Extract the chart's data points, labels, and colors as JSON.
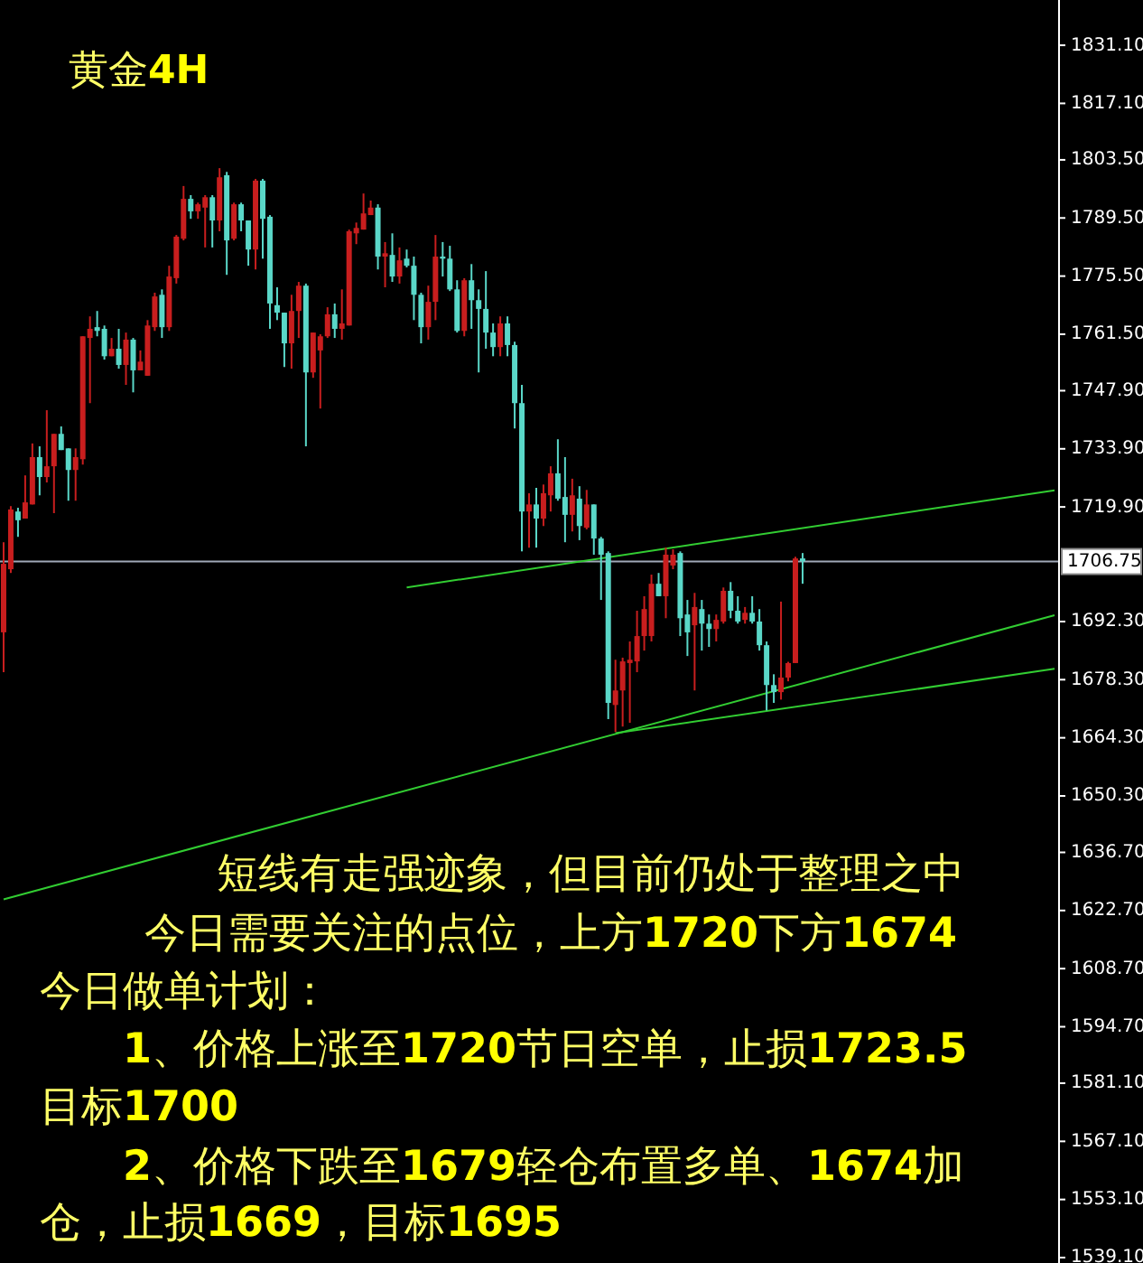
{
  "chart_data": {
    "type": "candlestick",
    "title": "黄金4H",
    "categories": [
      null,
      null,
      null,
      null,
      null,
      null,
      null,
      null,
      null,
      null,
      null,
      null,
      null,
      null,
      null,
      null,
      null,
      null,
      null,
      null,
      null,
      null,
      null,
      null,
      null,
      null,
      null,
      null,
      null,
      null,
      null,
      null,
      null,
      null,
      null,
      null,
      null,
      null,
      null,
      null,
      null,
      null,
      null,
      null,
      null,
      null,
      null,
      null,
      null,
      null,
      null,
      null,
      null,
      null,
      null,
      null,
      null,
      null,
      null,
      null,
      null,
      null,
      null,
      null,
      null,
      null,
      null,
      null,
      null,
      null,
      null,
      null,
      null,
      null,
      null,
      null,
      null,
      null,
      null,
      null,
      null,
      null,
      null,
      null,
      null,
      null,
      null,
      null,
      null,
      null,
      null,
      null,
      null,
      null,
      null,
      null,
      null,
      null,
      null,
      null,
      null,
      null,
      null,
      null,
      null,
      null,
      null,
      null,
      null,
      null,
      null,
      null,
      null,
      null,
      null,
      null,
      null,
      null,
      null,
      null,
      null,
      null,
      null,
      null,
      null,
      null,
      null,
      null,
      null,
      null,
      null,
      null,
      null,
      null,
      null,
      null,
      null,
      null,
      null,
      null,
      null,
      null,
      null,
      null,
      null,
      null,
      null
    ],
    "ohlc": [
      [
        1689.7,
        1711.4,
        1680.1,
        1706.2
      ],
      [
        1704.9,
        1720.1,
        1704.0,
        1719.3
      ],
      [
        1718.8,
        1719.7,
        1712.7,
        1716.7
      ],
      [
        1717.1,
        1727.5,
        1717.1,
        1721.0
      ],
      [
        1720.5,
        1735.2,
        1720.5,
        1731.9
      ],
      [
        1731.9,
        1734.5,
        1722.7,
        1727.1
      ],
      [
        1727.1,
        1743.2,
        1725.8,
        1729.7
      ],
      [
        1729.7,
        1737.5,
        1718.4,
        1737.5
      ],
      [
        1737.5,
        1739.3,
        1733.6,
        1733.6
      ],
      [
        1734.0,
        1734.0,
        1721.4,
        1728.8
      ],
      [
        1728.8,
        1734.0,
        1721.4,
        1731.9
      ],
      [
        1731.4,
        1761.0,
        1730.1,
        1761.0
      ],
      [
        1760.6,
        1765.8,
        1744.9,
        1762.8
      ],
      [
        1763.2,
        1767.1,
        1761.0,
        1762.3
      ],
      [
        1762.8,
        1763.6,
        1755.4,
        1756.2
      ],
      [
        1756.2,
        1760.6,
        1756.2,
        1758.0
      ],
      [
        1758.0,
        1762.8,
        1753.2,
        1754.1
      ],
      [
        1754.1,
        1761.9,
        1749.3,
        1760.2
      ],
      [
        1760.2,
        1760.6,
        1747.5,
        1752.8
      ],
      [
        1752.8,
        1757.6,
        1752.8,
        1754.9
      ],
      [
        1751.5,
        1764.9,
        1751.5,
        1763.6
      ],
      [
        1763.2,
        1771.5,
        1762.3,
        1770.6
      ],
      [
        1771.0,
        1772.3,
        1760.6,
        1763.2
      ],
      [
        1763.2,
        1778.0,
        1762.3,
        1775.4
      ],
      [
        1775.0,
        1785.4,
        1773.7,
        1785.0
      ],
      [
        1784.5,
        1797.2,
        1784.1,
        1794.1
      ],
      [
        1794.1,
        1795.0,
        1789.3,
        1791.1
      ],
      [
        1791.1,
        1793.2,
        1789.3,
        1792.8
      ],
      [
        1792.0,
        1795.0,
        1782.4,
        1794.5
      ],
      [
        1794.5,
        1795.0,
        1782.4,
        1788.9
      ],
      [
        1788.9,
        1801.5,
        1786.3,
        1799.3
      ],
      [
        1799.8,
        1800.6,
        1775.8,
        1784.1
      ],
      [
        1784.5,
        1793.2,
        1784.1,
        1792.8
      ],
      [
        1792.8,
        1793.2,
        1786.3,
        1788.9
      ],
      [
        1788.9,
        1788.9,
        1778.0,
        1781.9
      ],
      [
        1781.9,
        1798.9,
        1777.1,
        1798.5
      ],
      [
        1798.5,
        1798.9,
        1779.7,
        1789.3
      ],
      [
        1789.8,
        1790.2,
        1762.8,
        1768.9
      ],
      [
        1768.5,
        1772.8,
        1764.9,
        1766.7
      ],
      [
        1766.7,
        1766.7,
        1753.6,
        1759.3
      ],
      [
        1759.3,
        1771.0,
        1753.2,
        1767.1
      ],
      [
        1767.1,
        1774.1,
        1760.6,
        1773.2
      ],
      [
        1773.2,
        1773.7,
        1734.5,
        1752.3
      ],
      [
        1752.3,
        1761.9,
        1751.0,
        1761.9
      ],
      [
        1757.6,
        1761.5,
        1743.6,
        1761.0
      ],
      [
        1761.0,
        1768.0,
        1760.6,
        1766.3
      ],
      [
        1766.3,
        1768.9,
        1760.6,
        1762.8
      ],
      [
        1762.8,
        1772.3,
        1760.2,
        1764.1
      ],
      [
        1763.6,
        1786.7,
        1763.6,
        1786.3
      ],
      [
        1785.8,
        1788.4,
        1783.2,
        1787.1
      ],
      [
        1786.7,
        1795.4,
        1786.7,
        1790.6
      ],
      [
        1790.2,
        1793.7,
        1790.2,
        1792.0
      ],
      [
        1792.0,
        1792.8,
        1777.1,
        1780.2
      ],
      [
        1780.2,
        1783.7,
        1772.8,
        1781.0
      ],
      [
        1780.6,
        1785.8,
        1774.1,
        1775.4
      ],
      [
        1775.4,
        1782.4,
        1773.7,
        1779.3
      ],
      [
        1779.7,
        1781.9,
        1777.6,
        1778.0
      ],
      [
        1778.0,
        1780.2,
        1764.9,
        1771.0
      ],
      [
        1771.0,
        1771.5,
        1759.3,
        1763.2
      ],
      [
        1763.2,
        1773.2,
        1760.2,
        1769.3
      ],
      [
        1769.3,
        1785.4,
        1764.9,
        1780.2
      ],
      [
        1780.2,
        1783.7,
        1775.4,
        1779.7
      ],
      [
        1779.7,
        1782.8,
        1771.9,
        1772.3
      ],
      [
        1772.3,
        1774.5,
        1761.9,
        1762.3
      ],
      [
        1762.3,
        1775.0,
        1761.0,
        1774.5
      ],
      [
        1774.5,
        1778.4,
        1762.8,
        1769.7
      ],
      [
        1769.7,
        1772.3,
        1752.3,
        1767.6
      ],
      [
        1767.6,
        1776.7,
        1758.0,
        1761.9
      ],
      [
        1761.9,
        1764.1,
        1756.2,
        1758.4
      ],
      [
        1758.4,
        1765.8,
        1756.2,
        1764.1
      ],
      [
        1764.1,
        1765.8,
        1756.2,
        1758.9
      ],
      [
        1758.9,
        1759.7,
        1738.8,
        1744.9
      ],
      [
        1744.9,
        1749.3,
        1709.2,
        1718.8
      ],
      [
        1718.8,
        1723.2,
        1710.1,
        1720.5
      ],
      [
        1720.5,
        1724.5,
        1710.1,
        1717.1
      ],
      [
        1717.1,
        1725.3,
        1715.3,
        1723.2
      ],
      [
        1722.7,
        1729.7,
        1718.8,
        1728.0
      ],
      [
        1728.0,
        1736.2,
        1721.4,
        1721.9
      ],
      [
        1722.3,
        1731.9,
        1711.4,
        1718.0
      ],
      [
        1718.0,
        1726.7,
        1714.0,
        1722.7
      ],
      [
        1721.9,
        1724.9,
        1711.9,
        1715.3
      ],
      [
        1714.9,
        1724.0,
        1714.5,
        1720.5
      ],
      [
        1720.5,
        1720.5,
        1708.4,
        1712.3
      ],
      [
        1712.3,
        1712.7,
        1697.5,
        1708.4
      ],
      [
        1708.8,
        1709.2,
        1668.8,
        1672.7
      ],
      [
        1672.2,
        1683.1,
        1665.7,
        1675.7
      ],
      [
        1675.7,
        1683.6,
        1667.0,
        1682.7
      ],
      [
        1682.3,
        1687.5,
        1667.9,
        1683.1
      ],
      [
        1682.7,
        1694.9,
        1680.1,
        1688.8
      ],
      [
        1688.8,
        1698.4,
        1685.3,
        1695.3
      ],
      [
        1688.8,
        1703.6,
        1687.5,
        1701.4
      ],
      [
        1701.4,
        1704.0,
        1698.4,
        1698.4
      ],
      [
        1698.4,
        1710.1,
        1693.1,
        1708.4
      ],
      [
        1705.8,
        1709.7,
        1704.9,
        1708.4
      ],
      [
        1708.8,
        1709.2,
        1688.8,
        1693.1
      ],
      [
        1694.0,
        1697.5,
        1684.0,
        1689.7
      ],
      [
        1691.4,
        1699.2,
        1675.7,
        1695.8
      ],
      [
        1695.3,
        1697.5,
        1685.3,
        1691.8
      ],
      [
        1691.8,
        1694.0,
        1686.2,
        1690.5
      ],
      [
        1690.5,
        1694.0,
        1687.5,
        1692.7
      ],
      [
        1692.3,
        1700.5,
        1691.8,
        1699.7
      ],
      [
        1699.7,
        1701.8,
        1693.1,
        1694.9
      ],
      [
        1694.9,
        1698.4,
        1691.8,
        1692.3
      ],
      [
        1692.7,
        1695.8,
        1691.8,
        1694.4
      ],
      [
        1694.4,
        1698.4,
        1691.8,
        1692.3
      ],
      [
        1692.3,
        1695.3,
        1685.3,
        1686.6
      ],
      [
        1686.6,
        1687.5,
        1670.9,
        1677.0
      ],
      [
        1677.0,
        1679.6,
        1672.7,
        1675.3
      ],
      [
        1675.3,
        1697.1,
        1673.5,
        1678.8
      ],
      [
        1678.8,
        1682.6,
        1677.9,
        1682.3
      ],
      [
        1682.3,
        1707.9,
        1682.3,
        1707.5
      ],
      [
        1707.5,
        1708.8,
        1701.4,
        1706.8
      ],
      null,
      null,
      null,
      null,
      null,
      null,
      null,
      null,
      null,
      null,
      null,
      null,
      null,
      null,
      null,
      null,
      null,
      null,
      null,
      null,
      null,
      null,
      null,
      null,
      null,
      null,
      null,
      null,
      null,
      null,
      null,
      null,
      null,
      null,
      null
    ],
    "colors": [
      "#c81e1e",
      "#c81e1e",
      "#5ad7c8",
      "#c81e1e",
      "#c81e1e",
      "#5ad7c8",
      "#c81e1e",
      "#c81e1e",
      "#5ad7c8",
      "#5ad7c8",
      "#c81e1e",
      "#c81e1e",
      "#c81e1e",
      "#5ad7c8",
      "#5ad7c8",
      "#c81e1e",
      "#5ad7c8",
      "#c81e1e",
      "#5ad7c8",
      "#c81e1e",
      "#c81e1e",
      "#c81e1e",
      "#5ad7c8",
      "#c81e1e",
      "#c81e1e",
      "#c81e1e",
      "#5ad7c8",
      "#c81e1e",
      "#c81e1e",
      "#5ad7c8",
      "#c81e1e",
      "#5ad7c8",
      "#c81e1e",
      "#5ad7c8",
      "#5ad7c8",
      "#c81e1e",
      "#5ad7c8",
      "#5ad7c8",
      "#5ad7c8",
      "#5ad7c8",
      "#c81e1e",
      "#c81e1e",
      "#5ad7c8",
      "#c81e1e",
      "#c81e1e",
      "#c81e1e",
      "#5ad7c8",
      "#c81e1e",
      "#c81e1e",
      "#c81e1e",
      "#c81e1e",
      "#c81e1e",
      "#5ad7c8",
      "#c81e1e",
      "#5ad7c8",
      "#c81e1e",
      "#5ad7c8",
      "#5ad7c8",
      "#5ad7c8",
      "#c81e1e",
      "#c81e1e",
      "#5ad7c8",
      "#5ad7c8",
      "#5ad7c8",
      "#c81e1e",
      "#5ad7c8",
      "#5ad7c8",
      "#5ad7c8",
      "#5ad7c8",
      "#c81e1e",
      "#5ad7c8",
      "#5ad7c8",
      "#5ad7c8",
      "#c81e1e",
      "#5ad7c8",
      "#c81e1e",
      "#c81e1e",
      "#5ad7c8",
      "#5ad7c8",
      "#c81e1e",
      "#5ad7c8",
      "#c81e1e",
      "#5ad7c8",
      "#5ad7c8",
      "#5ad7c8",
      "#c81e1e",
      "#c81e1e",
      "#c81e1e",
      "#c81e1e",
      "#c81e1e",
      "#c81e1e",
      "#5ad7c8",
      "#c81e1e",
      "#c81e1e",
      "#5ad7c8",
      "#5ad7c8",
      "#c81e1e",
      "#5ad7c8",
      "#5ad7c8",
      "#c81e1e",
      "#c81e1e",
      "#5ad7c8",
      "#5ad7c8",
      "#c81e1e",
      "#5ad7c8",
      "#5ad7c8",
      "#5ad7c8",
      "#5ad7c8",
      "#c81e1e",
      "#c81e1e",
      "#c81e1e",
      "#5ad7c8",
      null,
      null,
      null,
      null,
      null,
      null,
      null,
      null,
      null,
      null,
      null,
      null,
      null,
      null,
      null,
      null,
      null,
      null,
      null,
      null,
      null,
      null,
      null,
      null,
      null,
      null,
      null,
      null,
      null,
      null,
      null,
      null,
      null,
      null,
      null
    ],
    "ylim": [
      1537.8,
      1842.0
    ],
    "yticks": [
      {
        "value": 1831.1,
        "label": "1831.10"
      },
      {
        "value": 1817.1,
        "label": "1817.10"
      },
      {
        "value": 1803.5,
        "label": "1803.50"
      },
      {
        "value": 1789.5,
        "label": "1789.50"
      },
      {
        "value": 1775.5,
        "label": "1775.50"
      },
      {
        "value": 1761.5,
        "label": "1761.50"
      },
      {
        "value": 1747.9,
        "label": "1747.90"
      },
      {
        "value": 1733.9,
        "label": "1733.90"
      },
      {
        "value": 1719.9,
        "label": "1719.90"
      },
      {
        "value": 1692.3,
        "label": "1692.30"
      },
      {
        "value": 1678.3,
        "label": "1678.30"
      },
      {
        "value": 1664.3,
        "label": "1664.30"
      },
      {
        "value": 1650.3,
        "label": "1650.30"
      },
      {
        "value": 1636.7,
        "label": "1636.70"
      },
      {
        "value": 1622.7,
        "label": "1622.70"
      },
      {
        "value": 1608.7,
        "label": "1608.70"
      },
      {
        "value": 1594.7,
        "label": "1594.70"
      },
      {
        "value": 1581.1,
        "label": "1581.10"
      },
      {
        "value": 1567.1,
        "label": "1567.10"
      },
      {
        "value": 1553.1,
        "label": "1553.10"
      },
      {
        "value": 1539.1,
        "label": "1539.10"
      }
    ],
    "tick_labels": "y",
    "series": [
      {
        "type": "line",
        "color": "#32cd32",
        "values": [
          null,
          null,
          null,
          null,
          null,
          null,
          null,
          null,
          null,
          null,
          null,
          null,
          null,
          null,
          null,
          null,
          null,
          null,
          null,
          null,
          null,
          null,
          null,
          null,
          null,
          null,
          null,
          null,
          null,
          null,
          null,
          null,
          null,
          null,
          null,
          null,
          null,
          null,
          null,
          null,
          null,
          null,
          null,
          null,
          null,
          null,
          null,
          null,
          null,
          null,
          null,
          null,
          null,
          null,
          null,
          null,
          1700.5,
          null,
          null,
          null,
          null,
          null,
          null,
          null,
          null,
          null,
          null,
          null,
          null,
          null,
          null,
          null,
          null,
          null,
          null,
          null,
          null,
          null,
          null,
          null,
          null,
          null,
          null,
          null,
          null,
          null,
          null,
          null,
          null,
          null,
          null,
          null,
          null,
          null,
          null,
          null,
          null,
          null,
          null,
          null,
          null,
          null,
          null,
          null,
          null,
          null,
          null,
          null,
          null,
          null,
          null,
          null,
          null,
          null,
          null,
          null,
          null,
          null,
          null,
          null,
          null,
          null,
          null,
          null,
          null,
          null,
          null,
          null,
          null,
          null,
          null,
          null,
          null,
          null,
          null,
          null,
          null,
          null,
          null,
          null,
          null,
          null,
          null,
          null,
          null,
          null,
          1723.9
        ]
      },
      {
        "type": "line",
        "color": "#32cd32",
        "values": [
          1625.4,
          null,
          null,
          null,
          null,
          null,
          null,
          null,
          null,
          null,
          null,
          null,
          null,
          null,
          null,
          null,
          null,
          null,
          null,
          null,
          null,
          null,
          null,
          null,
          null,
          null,
          null,
          null,
          null,
          null,
          null,
          null,
          null,
          null,
          null,
          null,
          null,
          null,
          null,
          null,
          null,
          null,
          null,
          null,
          null,
          null,
          null,
          null,
          null,
          null,
          null,
          null,
          null,
          null,
          null,
          null,
          null,
          null,
          null,
          null,
          null,
          null,
          null,
          null,
          null,
          null,
          null,
          null,
          null,
          null,
          null,
          null,
          null,
          null,
          null,
          null,
          null,
          null,
          null,
          null,
          null,
          null,
          null,
          null,
          null,
          null,
          null,
          null,
          null,
          null,
          null,
          null,
          null,
          null,
          null,
          null,
          null,
          null,
          null,
          null,
          null,
          null,
          null,
          null,
          null,
          null,
          null,
          null,
          null,
          null,
          null,
          null,
          null,
          null,
          null,
          null,
          null,
          null,
          null,
          null,
          null,
          null,
          null,
          null,
          null,
          null,
          null,
          null,
          null,
          null,
          null,
          null,
          null,
          null,
          null,
          null,
          null,
          null,
          null,
          null,
          null,
          null,
          null,
          null,
          null,
          null,
          1693.8
        ]
      },
      {
        "type": "line",
        "color": "#32cd32",
        "values": [
          null,
          null,
          null,
          null,
          null,
          null,
          null,
          null,
          null,
          null,
          null,
          null,
          null,
          null,
          null,
          null,
          null,
          null,
          null,
          null,
          null,
          null,
          null,
          null,
          null,
          null,
          null,
          null,
          null,
          null,
          null,
          null,
          null,
          null,
          null,
          null,
          null,
          null,
          null,
          null,
          null,
          null,
          null,
          null,
          null,
          null,
          null,
          null,
          null,
          null,
          null,
          null,
          null,
          null,
          null,
          null,
          null,
          null,
          null,
          null,
          null,
          null,
          null,
          null,
          null,
          null,
          null,
          null,
          null,
          null,
          null,
          null,
          null,
          null,
          null,
          null,
          null,
          null,
          null,
          null,
          null,
          null,
          null,
          null,
          null,
          1665.4,
          null,
          null,
          null,
          null,
          null,
          null,
          null,
          null,
          null,
          null,
          null,
          null,
          null,
          null,
          null,
          null,
          null,
          null,
          null,
          null,
          null,
          null,
          null,
          null,
          null,
          null,
          null,
          null,
          null,
          null,
          null,
          null,
          null,
          null,
          null,
          null,
          null,
          null,
          null,
          null,
          null,
          null,
          null,
          null,
          null,
          null,
          null,
          null,
          null,
          null,
          null,
          null,
          null,
          null,
          null,
          null,
          null,
          null,
          null,
          null,
          1680.9
        ]
      }
    ],
    "ref_lines": [
      {
        "axis": "y",
        "value": 1706.75,
        "label": "1706.75",
        "color": "#a0a8b8"
      }
    ],
    "annotations": [
      "短线有走强迹象，但目前仍处于整理之中",
      "今日需要关注的点位，上方1720下方1674",
      "今日做单计划：",
      "1、价格上涨至1720节日空单，止损1723.5",
      "目标1700",
      "2、价格下跌至1679轻仓布置多单、1674加",
      "仓，止损1669，目标1695"
    ]
  }
}
